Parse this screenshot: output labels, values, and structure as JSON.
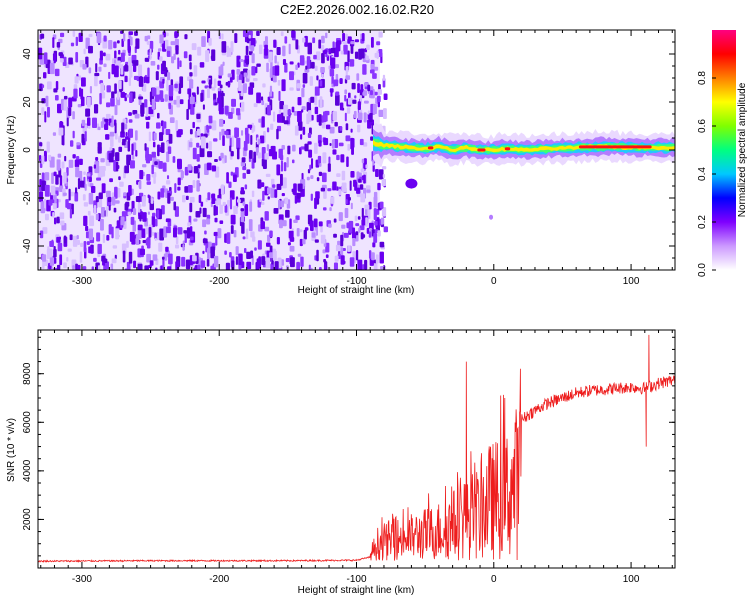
{
  "title": "C2E2.2026.002.16.02.R20",
  "colors": {
    "frame": "#000000",
    "snr_line": "#ee1c1c",
    "spectrogram_noise": "#6a00f0",
    "colormap": [
      "#ffffff",
      "#cc99ff",
      "#7f00ff",
      "#0000ff",
      "#00c8ff",
      "#00ff80",
      "#80ff00",
      "#ffff00",
      "#ff8000",
      "#ff0000",
      "#ff0080"
    ]
  },
  "chart_data": [
    {
      "type": "heatmap",
      "name": "spectrogram",
      "xlabel": "Height of straight line (km)",
      "ylabel": "Frequency (Hz)",
      "xlim": [
        -332,
        132
      ],
      "ylim": [
        -50,
        50
      ],
      "xticks": [
        -300,
        -200,
        -100,
        0,
        100
      ],
      "xtick_labels": [
        "-300",
        "-200",
        "-100",
        "0",
        "100"
      ],
      "yticks": [
        -40,
        -20,
        0,
        20,
        40
      ],
      "ytick_labels": [
        "-40",
        "-20",
        "0",
        "20",
        "40"
      ],
      "noise_region_x": [
        -332,
        -83
      ],
      "signal_center_hz": [
        [
          -88,
          3
        ],
        [
          -80,
          2
        ],
        [
          -70,
          1.5
        ],
        [
          -60,
          1
        ],
        [
          -50,
          0.5
        ],
        [
          -40,
          1.5
        ],
        [
          -30,
          0
        ],
        [
          -20,
          1
        ],
        [
          -10,
          0
        ],
        [
          0,
          0
        ],
        [
          10,
          0.5
        ],
        [
          20,
          0
        ],
        [
          40,
          0.5
        ],
        [
          60,
          1
        ],
        [
          80,
          1.5
        ],
        [
          100,
          1
        ],
        [
          115,
          1
        ],
        [
          132,
          1
        ]
      ],
      "colorbar": {
        "label": "Normalized spectral amplitude",
        "range": [
          0,
          1
        ],
        "ticks": [
          0.0,
          0.2,
          0.4,
          0.6,
          0.8
        ],
        "tick_labels": [
          "0.0",
          "0.2",
          "0.4",
          "0.6",
          "0.8"
        ]
      }
    },
    {
      "type": "line",
      "name": "snr",
      "xlabel": "Height of straight line (km)",
      "ylabel": "SNR (10 * v/v)",
      "xlim": [
        -332,
        132
      ],
      "ylim": [
        0,
        9800
      ],
      "xticks": [
        -300,
        -200,
        -100,
        0,
        100
      ],
      "xtick_labels": [
        "-300",
        "-200",
        "-100",
        "0",
        "100"
      ],
      "yticks": [
        2000,
        4000,
        6000,
        8000
      ],
      "ytick_labels": [
        "2000",
        "4000",
        "6000",
        "8000"
      ],
      "series": [
        {
          "name": "SNR",
          "envelope_points": [
            [
              -332,
              280
            ],
            [
              -250,
              300
            ],
            [
              -150,
              300
            ],
            [
              -100,
              320
            ],
            [
              -90,
              450
            ],
            [
              -85,
              1200
            ],
            [
              -75,
              1500
            ],
            [
              -65,
              1600
            ],
            [
              -55,
              1800
            ],
            [
              -45,
              2000
            ],
            [
              -35,
              2300
            ],
            [
              -25,
              2800
            ],
            [
              -20,
              3500
            ],
            [
              -15,
              3200
            ],
            [
              -10,
              3400
            ],
            [
              -5,
              4200
            ],
            [
              0,
              4300
            ],
            [
              5,
              4500
            ],
            [
              10,
              4800
            ],
            [
              15,
              5400
            ],
            [
              20,
              6100
            ],
            [
              30,
              6500
            ],
            [
              40,
              6800
            ],
            [
              50,
              7000
            ],
            [
              60,
              7200
            ],
            [
              70,
              7300
            ],
            [
              80,
              7350
            ],
            [
              90,
              7400
            ],
            [
              100,
              7450
            ],
            [
              110,
              7400
            ],
            [
              120,
              7600
            ],
            [
              132,
              7750
            ]
          ],
          "spikes": [
            [
              -20,
              8500
            ],
            [
              8,
              7000
            ],
            [
              113,
              9600
            ],
            [
              111,
              5000
            ]
          ]
        }
      ]
    }
  ]
}
